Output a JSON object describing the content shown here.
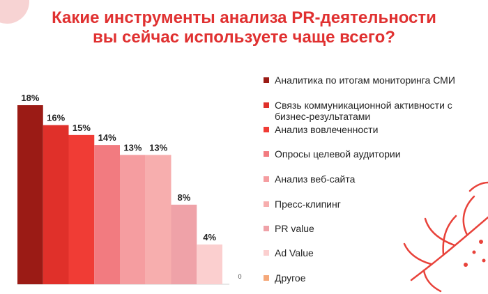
{
  "slide": {
    "title_line1": "Какие инструменты анализа PR-деятельности",
    "title_line2": "вы сейчас используете чаще всего?"
  },
  "chart_data": {
    "type": "bar",
    "title": "Какие инструменты анализа PR-деятельности вы сейчас используете чаще всего?",
    "categories": [
      "Аналитика по итогам мониторинга СМИ",
      "Связь коммуникационной активности с бизнес-результатами",
      "Анализ вовлеченности",
      "Опросы целевой аудитории",
      "Анализ веб-сайта",
      "Пресс-клипинг",
      "PR value",
      "Ad Value",
      "Другое"
    ],
    "values": [
      18,
      16,
      15,
      14,
      13,
      13,
      8,
      4,
      0
    ],
    "data_labels": [
      "18%",
      "16%",
      "15%",
      "14%",
      "13%",
      "13%",
      "8%",
      "4%",
      "0"
    ],
    "colors": [
      "#9b1b15",
      "#e0302a",
      "#f03c35",
      "#f27b80",
      "#f59da0",
      "#f7aeae",
      "#efa2a8",
      "#fbcfcf",
      "#f5a87a"
    ],
    "ylim": [
      0,
      18
    ],
    "grid": false,
    "legend_position": "right"
  }
}
